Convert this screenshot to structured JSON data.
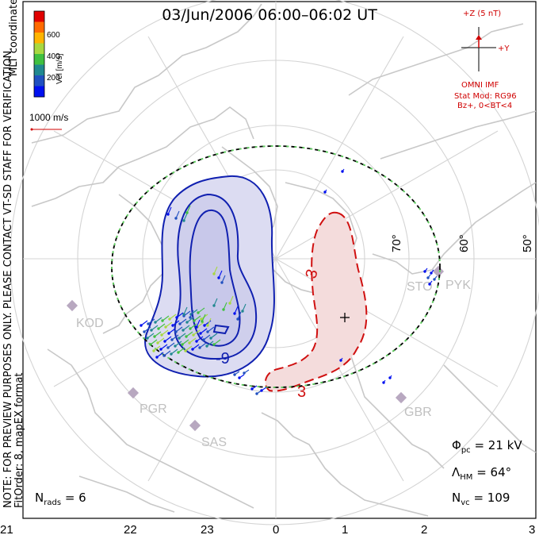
{
  "title": "03/Jun/2006 06:00–06:02 UT",
  "notes": {
    "line1": "NOTE: FOR PREVIEW PURPOSES ONLY. PLEASE CONTACT VT-SD STAFF FOR VERIFICATION.",
    "line2": "FitOrder: 8, mapEX format",
    "mlt": "MLT coordinates"
  },
  "colorbar": {
    "label": "Vel [m/s]",
    "ticks": [
      "600",
      "400",
      "200"
    ],
    "colors": [
      "#e00000",
      "#ff6a00",
      "#ffb400",
      "#a8d840",
      "#40c040",
      "#208890",
      "#2050c0",
      "#0010f0"
    ]
  },
  "scale_vector": {
    "label": "1000 m/s",
    "color": "#d00000"
  },
  "imf": {
    "z_label": "+Z (5 nT)",
    "y_label": "+Y",
    "source": "OMNI IMF",
    "model": "Stat Mod: RG96",
    "condition": "Bz+, 0<BT<4"
  },
  "latitude_labels": [
    "70°",
    "60°",
    "50°"
  ],
  "stations": [
    "STO",
    "PYK",
    "KOD",
    "PGR",
    "SAS",
    "GBR"
  ],
  "contour_labels": {
    "negative": "-9",
    "positive": "3",
    "positive_b": "3"
  },
  "stats": {
    "phi_pc": "Φ",
    "phi_sub": "pc",
    "phi_value": "= 21 kV",
    "lambda": "Λ",
    "lambda_sub": "HM",
    "lambda_value": "= 64°",
    "nvc": "N",
    "nvc_sub": "vc",
    "nvc_value": "= 109",
    "nrads": "N",
    "nrads_sub": "rads",
    "nrads_value": "= 6"
  },
  "mlt_axis": [
    "21",
    "22",
    "23",
    "0",
    "1",
    "2",
    "3"
  ],
  "colors": {
    "negative_contour": "#1020b0",
    "negative_fill": "#dcdcf2",
    "positive_contour": "#d01010",
    "positive_fill": "#f4dcdc",
    "coast": "#c8c8c8",
    "grid": "#d4d4d4",
    "station": "#b8a8c0",
    "hmb_green": "#60d060"
  }
}
